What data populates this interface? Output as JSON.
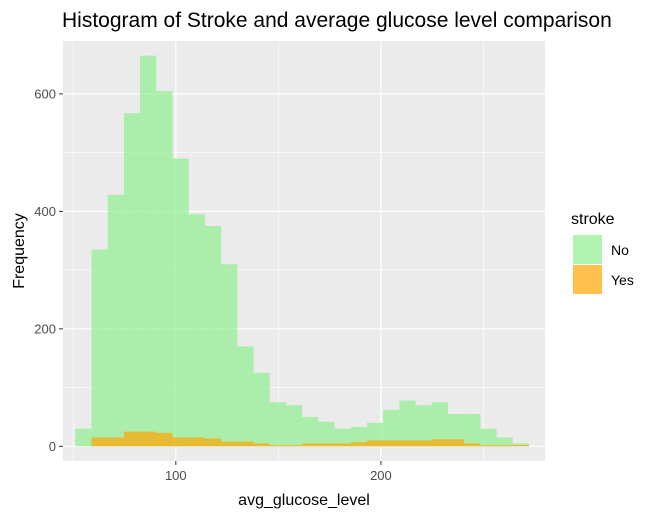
{
  "chart_data": {
    "type": "bar",
    "subtype": "histogram-overlay",
    "title": "Histogram of Stroke and average glucose level comparison",
    "xlabel": "avg_glucose_level",
    "ylabel": "Frequency",
    "xlim": [
      45,
      280
    ],
    "ylim": [
      -25,
      690
    ],
    "xticks": [
      100,
      200
    ],
    "yticks": [
      0,
      200,
      400,
      600
    ],
    "xtick_labels": [
      "100",
      "200"
    ],
    "ytick_labels": [
      "0",
      "200",
      "400",
      "600"
    ],
    "grid": true,
    "bin_width": 7.9,
    "bin_starts": [
      51.0,
      58.9,
      66.8,
      74.7,
      82.6,
      90.5,
      98.4,
      106.3,
      114.2,
      122.1,
      130.0,
      137.9,
      145.8,
      153.7,
      161.6,
      169.5,
      177.4,
      185.3,
      193.2,
      201.1,
      209.0,
      216.9,
      224.8,
      232.7,
      240.6,
      248.5,
      256.4,
      264.3
    ],
    "series": [
      {
        "name": "No",
        "color": "#90EE90",
        "opacity": 0.7,
        "values": [
          30,
          335,
          428,
          567,
          665,
          605,
          490,
          395,
          375,
          310,
          170,
          125,
          75,
          70,
          50,
          42,
          30,
          33,
          40,
          62,
          78,
          70,
          75,
          55,
          55,
          30,
          15,
          5
        ]
      },
      {
        "name": "Yes",
        "color": "#FFA500",
        "opacity": 0.7,
        "values": [
          0,
          15,
          15,
          25,
          25,
          23,
          15,
          15,
          13,
          8,
          8,
          5,
          2,
          2,
          5,
          5,
          5,
          7,
          10,
          10,
          10,
          10,
          12,
          12,
          5,
          2,
          2,
          2
        ]
      }
    ],
    "legend": {
      "title": "stroke",
      "position": "right",
      "entries": [
        "No",
        "Yes"
      ]
    },
    "colors": {
      "panel_background": "#EBEBEB",
      "grid_major": "#FFFFFF",
      "no_fill": "#90EE90",
      "yes_fill": "#FFA500"
    }
  }
}
